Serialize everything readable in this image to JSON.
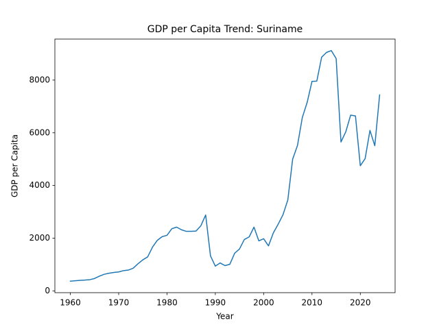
{
  "chart_data": {
    "type": "line",
    "title": "GDP per Capita Trend: Suriname",
    "x_label": "Year",
    "y_label": "GDP per Capita",
    "x": [
      1960,
      1961,
      1962,
      1963,
      1964,
      1965,
      1966,
      1967,
      1968,
      1969,
      1970,
      1971,
      1972,
      1973,
      1974,
      1975,
      1976,
      1977,
      1978,
      1979,
      1980,
      1981,
      1982,
      1983,
      1984,
      1985,
      1986,
      1987,
      1988,
      1989,
      1990,
      1991,
      1992,
      1993,
      1994,
      1995,
      1996,
      1997,
      1998,
      1999,
      2000,
      2001,
      2002,
      2003,
      2004,
      2005,
      2006,
      2007,
      2008,
      2009,
      2010,
      2011,
      2012,
      2013,
      2014,
      2015,
      2016,
      2017,
      2018,
      2019,
      2020,
      2021,
      2022,
      2023,
      2024
    ],
    "values": [
      370,
      385,
      400,
      410,
      425,
      470,
      560,
      630,
      670,
      700,
      720,
      770,
      790,
      860,
      1030,
      1180,
      1290,
      1660,
      1920,
      2060,
      2110,
      2360,
      2420,
      2320,
      2260,
      2260,
      2270,
      2470,
      2880,
      1330,
      940,
      1060,
      960,
      1010,
      1430,
      1590,
      1950,
      2050,
      2420,
      1900,
      1980,
      1710,
      2200,
      2530,
      2890,
      3450,
      5000,
      5520,
      6580,
      7150,
      7950,
      7960,
      8870,
      9050,
      9120,
      8820,
      5650,
      6040,
      6670,
      6640,
      4750,
      5020,
      6090,
      5510,
      7440
    ],
    "color": "#1f77b4",
    "xlim": [
      1956.8,
      2027.2
    ],
    "ylim": [
      -67,
      9557
    ],
    "xticks": [
      1960,
      1970,
      1980,
      1990,
      2000,
      2010,
      2020
    ],
    "yticks": [
      0,
      2000,
      4000,
      6000,
      8000
    ]
  }
}
